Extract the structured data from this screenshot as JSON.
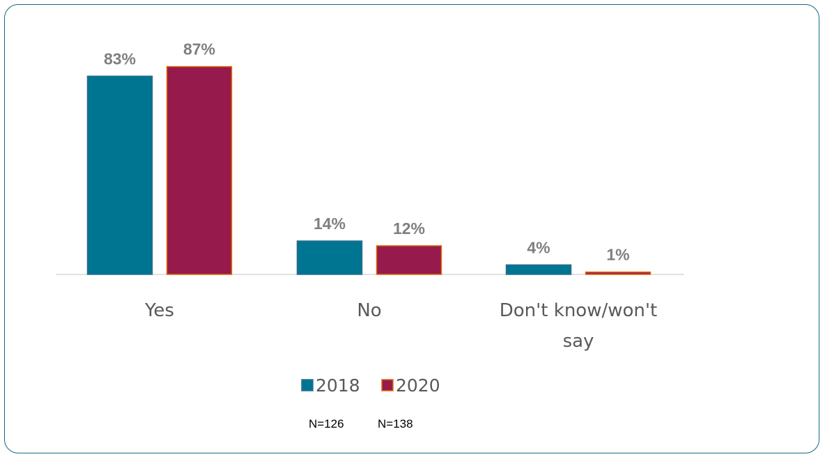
{
  "chart_data": {
    "type": "bar",
    "categories": [
      "Yes",
      "No",
      "Don't know/won't say"
    ],
    "category_lines": [
      [
        "Yes"
      ],
      [
        "No"
      ],
      [
        "Don't know/won't",
        "say"
      ]
    ],
    "series": [
      {
        "name": "2018",
        "values": [
          83,
          14,
          4
        ],
        "labels": [
          "83%",
          "14%",
          "4%"
        ],
        "color": "#007592",
        "stroke": "#2e6e8e"
      },
      {
        "name": "2020",
        "values": [
          87,
          12,
          1
        ],
        "labels": [
          "87%",
          "12%",
          "1%"
        ],
        "color": "#961a4b",
        "stroke": "#e46c0a"
      }
    ],
    "ylim": [
      0,
      100
    ],
    "grid": false,
    "legend_position": "bottom",
    "notes": [
      "N=126",
      "N=138"
    ]
  },
  "colors": {
    "frame": "#0f6a82",
    "axis": "#d9d9d9"
  }
}
